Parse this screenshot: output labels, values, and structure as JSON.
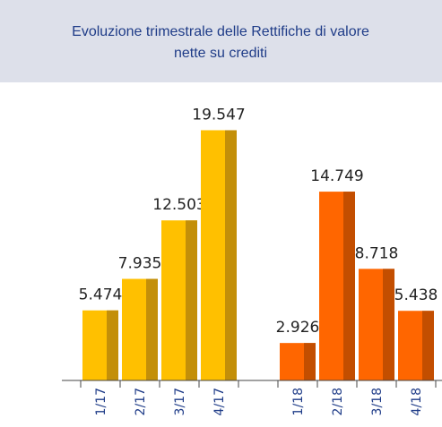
{
  "chart_data": {
    "type": "bar",
    "title": "Evoluzione trimestrale delle Rettifiche di valore nette su crediti",
    "categories": [
      "1/17",
      "2/17",
      "3/17",
      "4/17",
      null,
      "1/18",
      "2/18",
      "3/18",
      "4/18"
    ],
    "values": [
      5474,
      7935,
      12503,
      19547,
      null,
      2926,
      14749,
      8718,
      5438
    ],
    "value_labels": [
      "5.474",
      "7.935",
      "12.503",
      "19.547",
      null,
      "2.926",
      "14.749",
      "8.718",
      "5.438"
    ],
    "colors": [
      "#ffc000",
      "#ffc000",
      "#ffc000",
      "#ffc000",
      null,
      "#ff6600",
      "#ff6600",
      "#ff6600",
      "#ff6600"
    ],
    "ylim": [
      0,
      20000
    ]
  }
}
